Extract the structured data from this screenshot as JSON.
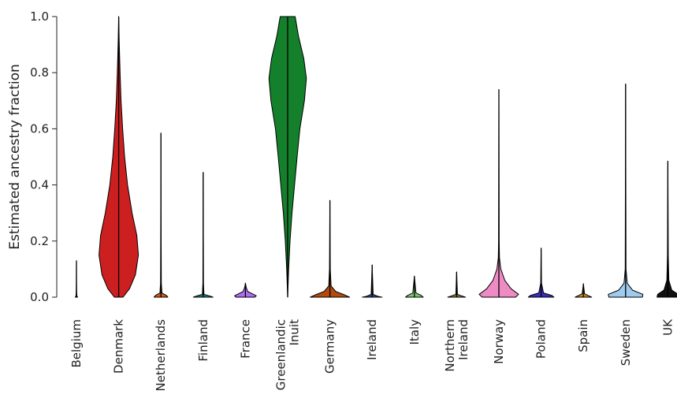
{
  "chart_data": {
    "type": "violin",
    "title": "",
    "xlabel": "",
    "ylabel": "Estimated ancestry fraction",
    "ylim": [
      0.0,
      1.0
    ],
    "yticks": [
      "0.0",
      "0.2",
      "0.4",
      "0.6",
      "0.8",
      "1.0"
    ],
    "grid": false,
    "legend": "none",
    "categories": [
      {
        "label": [
          "Belgium"
        ],
        "color": "#2f64c7",
        "max": 0.13,
        "median": 0.003,
        "profile": [
          [
            0,
            0.06
          ],
          [
            0.005,
            0.02
          ],
          [
            0.02,
            0.01
          ],
          [
            0.05,
            0.004
          ],
          [
            0.13,
            0.0
          ]
        ]
      },
      {
        "label": [
          "Denmark"
        ],
        "color": "#cc1f1f",
        "max": 1.0,
        "median": 0.2,
        "profile": [
          [
            0,
            0.22
          ],
          [
            0.03,
            0.55
          ],
          [
            0.08,
            0.85
          ],
          [
            0.15,
            1.0
          ],
          [
            0.22,
            0.92
          ],
          [
            0.3,
            0.68
          ],
          [
            0.4,
            0.45
          ],
          [
            0.5,
            0.3
          ],
          [
            0.6,
            0.2
          ],
          [
            0.7,
            0.12
          ],
          [
            0.8,
            0.07
          ],
          [
            0.9,
            0.03
          ],
          [
            1.0,
            0.0
          ]
        ]
      },
      {
        "label": [
          "Netherlands"
        ],
        "color": "#d35a14",
        "max": 0.585,
        "median": 0.003,
        "profile": [
          [
            0,
            0.35
          ],
          [
            0.006,
            0.28
          ],
          [
            0.015,
            0.05
          ],
          [
            0.05,
            0.02
          ],
          [
            0.2,
            0.012
          ],
          [
            0.585,
            0.0
          ]
        ]
      },
      {
        "label": [
          "Finland"
        ],
        "color": "#1a7f7f",
        "max": 0.445,
        "median": 0.002,
        "profile": [
          [
            0,
            0.5
          ],
          [
            0.004,
            0.35
          ],
          [
            0.01,
            0.04
          ],
          [
            0.05,
            0.015
          ],
          [
            0.445,
            0.0
          ]
        ]
      },
      {
        "label": [
          "France"
        ],
        "color": "#b26cf0",
        "max": 0.05,
        "median": 0.005,
        "profile": [
          [
            0,
            0.48
          ],
          [
            0.005,
            0.55
          ],
          [
            0.012,
            0.35
          ],
          [
            0.02,
            0.12
          ],
          [
            0.035,
            0.04
          ],
          [
            0.05,
            0.0
          ]
        ]
      },
      {
        "label": [
          "Greenlandic",
          "Inuit"
        ],
        "color": "#14802c",
        "max": 1.0,
        "median": 0.72,
        "profile": [
          [
            0,
            0.0
          ],
          [
            0.1,
            0.05
          ],
          [
            0.2,
            0.12
          ],
          [
            0.3,
            0.22
          ],
          [
            0.4,
            0.35
          ],
          [
            0.5,
            0.48
          ],
          [
            0.6,
            0.62
          ],
          [
            0.7,
            0.85
          ],
          [
            0.78,
            0.95
          ],
          [
            0.85,
            0.82
          ],
          [
            0.93,
            0.55
          ],
          [
            1.0,
            0.38
          ]
        ]
      },
      {
        "label": [
          "Germany"
        ],
        "color": "#b34a0c",
        "max": 0.345,
        "median": 0.004,
        "profile": [
          [
            0,
            1.0
          ],
          [
            0.008,
            0.75
          ],
          [
            0.02,
            0.3
          ],
          [
            0.04,
            0.06
          ],
          [
            0.1,
            0.02
          ],
          [
            0.345,
            0.0
          ]
        ]
      },
      {
        "label": [
          "Ireland"
        ],
        "color": "#2e4a8a",
        "max": 0.115,
        "median": 0.002,
        "profile": [
          [
            0,
            0.5
          ],
          [
            0.003,
            0.3
          ],
          [
            0.01,
            0.05
          ],
          [
            0.115,
            0.0
          ]
        ]
      },
      {
        "label": [
          "Italy"
        ],
        "color": "#7bc86e",
        "max": 0.075,
        "median": 0.003,
        "profile": [
          [
            0,
            0.45
          ],
          [
            0.006,
            0.35
          ],
          [
            0.015,
            0.08
          ],
          [
            0.075,
            0.0
          ]
        ]
      },
      {
        "label": [
          "Northern",
          "Ireland"
        ],
        "color": "#8a7a3a",
        "max": 0.09,
        "median": 0.002,
        "profile": [
          [
            0,
            0.45
          ],
          [
            0.004,
            0.28
          ],
          [
            0.01,
            0.04
          ],
          [
            0.09,
            0.0
          ]
        ]
      },
      {
        "label": [
          "Norway"
        ],
        "color": "#ef8bc4",
        "max": 0.74,
        "median": 0.005,
        "profile": [
          [
            0,
            0.85
          ],
          [
            0.01,
            1.0
          ],
          [
            0.03,
            0.62
          ],
          [
            0.06,
            0.3
          ],
          [
            0.1,
            0.1
          ],
          [
            0.14,
            0.03
          ],
          [
            0.2,
            0.015
          ],
          [
            0.74,
            0.0
          ]
        ]
      },
      {
        "label": [
          "Poland"
        ],
        "color": "#3a2ec0",
        "max": 0.175,
        "median": 0.003,
        "profile": [
          [
            0,
            0.65
          ],
          [
            0.006,
            0.55
          ],
          [
            0.015,
            0.12
          ],
          [
            0.05,
            0.02
          ],
          [
            0.175,
            0.0
          ]
        ]
      },
      {
        "label": [
          "Spain"
        ],
        "color": "#c98a1e",
        "max": 0.048,
        "median": 0.002,
        "profile": [
          [
            0,
            0.42
          ],
          [
            0.004,
            0.3
          ],
          [
            0.012,
            0.06
          ],
          [
            0.048,
            0.0
          ]
        ]
      },
      {
        "label": [
          "Sweden"
        ],
        "color": "#9ecbee",
        "max": 0.76,
        "median": 0.005,
        "profile": [
          [
            0,
            0.85
          ],
          [
            0.01,
            0.88
          ],
          [
            0.025,
            0.35
          ],
          [
            0.05,
            0.08
          ],
          [
            0.1,
            0.02
          ],
          [
            0.76,
            0.0
          ]
        ]
      },
      {
        "label": [
          "UK"
        ],
        "color": "#111111",
        "max": 0.485,
        "median": 0.002,
        "profile": [
          [
            0,
            0.55
          ],
          [
            0.01,
            0.52
          ],
          [
            0.025,
            0.2
          ],
          [
            0.06,
            0.05
          ],
          [
            0.15,
            0.02
          ],
          [
            0.485,
            0.0
          ]
        ]
      }
    ]
  }
}
